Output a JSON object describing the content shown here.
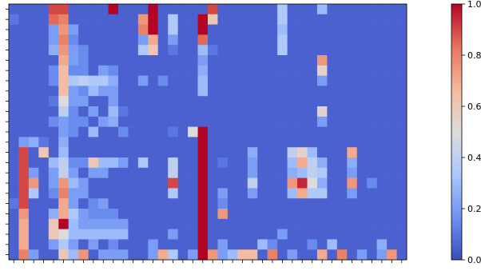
{
  "chart_data": {
    "type": "heatmap",
    "title": "",
    "xlabel": "",
    "ylabel": "",
    "colormap": "coolwarm",
    "vmin": 0.0,
    "vmax": 1.0,
    "x_tick_labels": [],
    "y_tick_labels": [],
    "colorbar": {
      "ticks": [
        0.0,
        0.2,
        0.4,
        0.6,
        0.8,
        1.0
      ],
      "tick_labels": [
        "0.0",
        "0.2",
        "0.4",
        "0.6",
        "0.8",
        "1.0"
      ],
      "colors": [
        "#3b4cc0",
        "#6f92f3",
        "#aac7fd",
        "#dddcdc",
        "#f7b89c",
        "#e7745b",
        "#b40426"
      ]
    },
    "n_rows": 25,
    "n_cols": 40,
    "base_value": 0.05,
    "cells": [
      [
        0,
        4,
        0.9
      ],
      [
        0,
        5,
        0.9
      ],
      [
        0,
        10,
        1.0
      ],
      [
        0,
        14,
        1.0
      ],
      [
        0,
        20,
        0.9
      ],
      [
        0,
        27,
        0.35
      ],
      [
        0,
        31,
        0.3
      ],
      [
        1,
        0,
        0.1
      ],
      [
        1,
        4,
        0.85
      ],
      [
        1,
        5,
        0.8
      ],
      [
        1,
        13,
        0.75
      ],
      [
        1,
        14,
        1.0
      ],
      [
        1,
        16,
        0.35
      ],
      [
        1,
        19,
        1.0
      ],
      [
        1,
        20,
        0.6
      ],
      [
        1,
        27,
        0.35
      ],
      [
        2,
        4,
        0.2
      ],
      [
        2,
        5,
        0.75
      ],
      [
        2,
        6,
        0.2
      ],
      [
        2,
        13,
        0.8
      ],
      [
        2,
        14,
        1.0
      ],
      [
        2,
        16,
        0.35
      ],
      [
        2,
        19,
        1.0
      ],
      [
        2,
        27,
        0.3
      ],
      [
        3,
        4,
        0.2
      ],
      [
        3,
        5,
        0.8
      ],
      [
        3,
        6,
        0.15
      ],
      [
        3,
        13,
        0.2
      ],
      [
        3,
        14,
        0.7
      ],
      [
        3,
        16,
        0.2
      ],
      [
        3,
        19,
        0.85
      ],
      [
        3,
        27,
        0.35
      ],
      [
        4,
        4,
        0.25
      ],
      [
        4,
        5,
        0.75
      ],
      [
        4,
        6,
        0.2
      ],
      [
        4,
        7,
        0.15
      ],
      [
        4,
        13,
        0.35
      ],
      [
        4,
        14,
        0.6
      ],
      [
        4,
        16,
        0.1
      ],
      [
        4,
        19,
        0.3
      ],
      [
        4,
        20,
        0.1
      ],
      [
        4,
        27,
        0.35
      ],
      [
        5,
        5,
        0.7
      ],
      [
        5,
        6,
        0.2
      ],
      [
        5,
        7,
        0.15
      ],
      [
        5,
        19,
        0.2
      ],
      [
        5,
        31,
        0.75
      ],
      [
        6,
        4,
        0.15
      ],
      [
        6,
        5,
        0.65
      ],
      [
        6,
        6,
        0.15
      ],
      [
        6,
        7,
        0.15
      ],
      [
        6,
        9,
        0.2
      ],
      [
        6,
        10,
        0.15
      ],
      [
        6,
        19,
        0.25
      ],
      [
        6,
        31,
        0.55
      ],
      [
        7,
        4,
        0.15
      ],
      [
        7,
        5,
        0.65
      ],
      [
        7,
        6,
        0.35
      ],
      [
        7,
        7,
        0.4
      ],
      [
        7,
        8,
        0.35
      ],
      [
        7,
        9,
        0.35
      ],
      [
        7,
        10,
        0.25
      ],
      [
        7,
        13,
        0.2
      ],
      [
        7,
        15,
        0.15
      ],
      [
        7,
        19,
        0.3
      ],
      [
        7,
        31,
        0.2
      ],
      [
        8,
        5,
        0.65
      ],
      [
        8,
        6,
        0.2
      ],
      [
        8,
        7,
        0.15
      ],
      [
        8,
        8,
        0.3
      ],
      [
        8,
        9,
        0.2
      ],
      [
        8,
        10,
        0.2
      ],
      [
        8,
        19,
        0.3
      ],
      [
        9,
        4,
        0.1
      ],
      [
        9,
        5,
        0.5
      ],
      [
        9,
        6,
        0.2
      ],
      [
        9,
        7,
        0.2
      ],
      [
        9,
        10,
        0.2
      ],
      [
        10,
        5,
        0.4
      ],
      [
        10,
        6,
        0.15
      ],
      [
        10,
        8,
        0.2
      ],
      [
        10,
        10,
        0.3
      ],
      [
        10,
        11,
        0.1
      ],
      [
        10,
        31,
        0.55
      ],
      [
        11,
        4,
        0.15
      ],
      [
        11,
        5,
        0.2
      ],
      [
        11,
        6,
        0.15
      ],
      [
        11,
        7,
        0.15
      ],
      [
        11,
        9,
        0.2
      ],
      [
        11,
        10,
        0.25
      ],
      [
        11,
        31,
        0.2
      ],
      [
        12,
        5,
        0.2
      ],
      [
        12,
        6,
        0.15
      ],
      [
        12,
        8,
        0.3
      ],
      [
        12,
        11,
        0.15
      ],
      [
        12,
        16,
        0.1
      ],
      [
        12,
        18,
        0.5
      ],
      [
        12,
        19,
        1.0
      ],
      [
        13,
        1,
        0.2
      ],
      [
        13,
        2,
        0.25
      ],
      [
        13,
        3,
        0.1
      ],
      [
        13,
        5,
        0.25
      ],
      [
        13,
        19,
        1.0
      ],
      [
        14,
        1,
        0.9
      ],
      [
        14,
        3,
        0.6
      ],
      [
        14,
        5,
        0.3
      ],
      [
        14,
        19,
        1.0
      ],
      [
        14,
        24,
        0.25
      ],
      [
        14,
        28,
        0.4
      ],
      [
        14,
        29,
        0.55
      ],
      [
        14,
        30,
        0.3
      ],
      [
        14,
        34,
        0.7
      ],
      [
        15,
        1,
        0.9
      ],
      [
        15,
        4,
        0.3
      ],
      [
        15,
        5,
        0.4
      ],
      [
        15,
        6,
        0.15
      ],
      [
        15,
        7,
        0.15
      ],
      [
        15,
        8,
        0.6
      ],
      [
        15,
        9,
        0.3
      ],
      [
        15,
        10,
        0.3
      ],
      [
        15,
        11,
        0.2
      ],
      [
        15,
        13,
        0.35
      ],
      [
        15,
        16,
        0.4
      ],
      [
        15,
        19,
        1.0
      ],
      [
        15,
        21,
        0.1
      ],
      [
        15,
        24,
        0.2
      ],
      [
        15,
        28,
        0.3
      ],
      [
        15,
        29,
        0.7
      ],
      [
        15,
        30,
        0.4
      ],
      [
        15,
        31,
        0.25
      ],
      [
        15,
        34,
        0.25
      ],
      [
        16,
        1,
        0.9
      ],
      [
        16,
        2,
        0.2
      ],
      [
        16,
        4,
        0.2
      ],
      [
        16,
        5,
        0.4
      ],
      [
        16,
        6,
        0.2
      ],
      [
        16,
        8,
        0.2
      ],
      [
        16,
        9,
        0.2
      ],
      [
        16,
        16,
        0.4
      ],
      [
        16,
        19,
        1.0
      ],
      [
        16,
        24,
        0.2
      ],
      [
        16,
        28,
        0.25
      ],
      [
        16,
        29,
        0.3
      ],
      [
        16,
        30,
        0.4
      ],
      [
        16,
        31,
        0.35
      ],
      [
        16,
        34,
        0.2
      ],
      [
        17,
        1,
        0.9
      ],
      [
        17,
        2,
        0.75
      ],
      [
        17,
        4,
        0.2
      ],
      [
        17,
        5,
        0.75
      ],
      [
        17,
        6,
        0.3
      ],
      [
        17,
        7,
        0.2
      ],
      [
        17,
        16,
        0.9
      ],
      [
        17,
        19,
        1.0
      ],
      [
        17,
        24,
        0.4
      ],
      [
        17,
        28,
        0.75
      ],
      [
        17,
        29,
        0.95
      ],
      [
        17,
        30,
        0.5
      ],
      [
        17,
        31,
        0.25
      ],
      [
        17,
        34,
        0.75
      ],
      [
        17,
        36,
        0.15
      ],
      [
        18,
        1,
        0.9
      ],
      [
        18,
        2,
        0.35
      ],
      [
        18,
        4,
        0.15
      ],
      [
        18,
        5,
        0.8
      ],
      [
        18,
        6,
        0.2
      ],
      [
        18,
        7,
        0.2
      ],
      [
        18,
        16,
        0.35
      ],
      [
        18,
        19,
        1.0
      ],
      [
        18,
        21,
        0.2
      ],
      [
        18,
        24,
        0.2
      ],
      [
        18,
        28,
        0.3
      ],
      [
        18,
        29,
        0.7
      ],
      [
        18,
        30,
        0.35
      ],
      [
        18,
        31,
        0.35
      ],
      [
        18,
        34,
        0.2
      ],
      [
        19,
        0,
        0.1
      ],
      [
        19,
        1,
        0.9
      ],
      [
        19,
        5,
        0.7
      ],
      [
        19,
        6,
        0.2
      ],
      [
        19,
        8,
        0.15
      ],
      [
        19,
        9,
        0.2
      ],
      [
        19,
        19,
        1.0
      ],
      [
        19,
        21,
        0.15
      ],
      [
        20,
        1,
        0.75
      ],
      [
        20,
        4,
        0.25
      ],
      [
        20,
        5,
        0.7
      ],
      [
        20,
        6,
        0.35
      ],
      [
        20,
        7,
        0.2
      ],
      [
        20,
        8,
        0.15
      ],
      [
        20,
        9,
        0.15
      ],
      [
        20,
        10,
        0.15
      ],
      [
        20,
        19,
        1.0
      ],
      [
        20,
        21,
        0.75
      ],
      [
        21,
        1,
        0.7
      ],
      [
        21,
        4,
        0.6
      ],
      [
        21,
        5,
        1.0
      ],
      [
        21,
        6,
        0.3
      ],
      [
        21,
        7,
        0.2
      ],
      [
        21,
        8,
        0.2
      ],
      [
        21,
        9,
        0.2
      ],
      [
        21,
        10,
        0.2
      ],
      [
        21,
        11,
        0.2
      ],
      [
        21,
        19,
        1.0
      ],
      [
        22,
        1,
        0.7
      ],
      [
        22,
        4,
        0.6
      ],
      [
        22,
        5,
        0.5
      ],
      [
        22,
        6,
        0.3
      ],
      [
        22,
        7,
        0.3
      ],
      [
        22,
        8,
        0.3
      ],
      [
        22,
        9,
        0.3
      ],
      [
        22,
        10,
        0.3
      ],
      [
        22,
        11,
        0.3
      ],
      [
        22,
        16,
        0.2
      ],
      [
        22,
        19,
        1.0
      ],
      [
        22,
        27,
        0.2
      ],
      [
        23,
        1,
        0.7
      ],
      [
        23,
        4,
        0.2
      ],
      [
        23,
        5,
        0.35
      ],
      [
        23,
        6,
        0.2
      ],
      [
        23,
        8,
        0.2
      ],
      [
        23,
        10,
        0.15
      ],
      [
        23,
        14,
        0.2
      ],
      [
        23,
        19,
        1.0
      ],
      [
        23,
        21,
        0.2
      ],
      [
        23,
        25,
        0.3
      ],
      [
        23,
        26,
        0.15
      ],
      [
        23,
        30,
        0.15
      ],
      [
        23,
        32,
        0.3
      ],
      [
        23,
        37,
        0.25
      ],
      [
        24,
        1,
        0.8
      ],
      [
        24,
        2,
        0.2
      ],
      [
        24,
        5,
        0.6
      ],
      [
        24,
        6,
        0.3
      ],
      [
        24,
        7,
        0.75
      ],
      [
        24,
        9,
        0.2
      ],
      [
        24,
        10,
        0.2
      ],
      [
        24,
        11,
        0.2
      ],
      [
        24,
        14,
        0.2
      ],
      [
        24,
        15,
        0.7
      ],
      [
        24,
        16,
        0.35
      ],
      [
        24,
        18,
        0.2
      ],
      [
        24,
        19,
        1.0
      ],
      [
        24,
        20,
        0.75
      ],
      [
        24,
        21,
        0.2
      ],
      [
        24,
        22,
        0.3
      ],
      [
        24,
        23,
        0.65
      ],
      [
        24,
        24,
        0.65
      ],
      [
        24,
        26,
        0.8
      ],
      [
        24,
        28,
        0.2
      ],
      [
        24,
        31,
        0.7
      ],
      [
        24,
        33,
        0.8
      ],
      [
        24,
        35,
        0.2
      ],
      [
        24,
        37,
        0.2
      ],
      [
        24,
        38,
        0.75
      ]
    ]
  }
}
